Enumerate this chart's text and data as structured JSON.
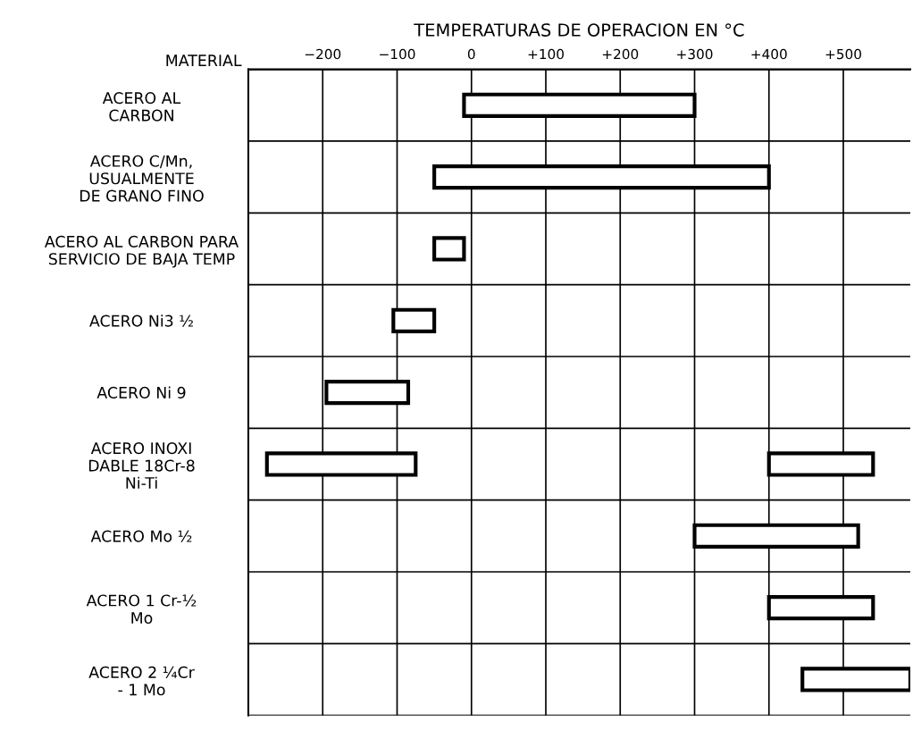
{
  "chart_data": {
    "type": "bar",
    "orientation": "horizontal",
    "xlabel": "TEMPERATURAS DE OPERACION EN °C",
    "ylabel": "MATERIAL",
    "categories": [
      "ACERO AL\nCARBON",
      "ACERO C/Mn,\nUSUALMENTE\nDE GRANO FINO",
      "ACERO AL CARBON PARA\nSERVICIO DE BAJA TEMP",
      "ACERO Ni3 ½",
      "ACERO Ni 9",
      "ACERO INOXI\nDABLE 18Cr-8\nNi-Ti",
      "ACERO Mo ½",
      "ACERO 1 Cr-½\nMo",
      "ACERO 2 ¼Cr\n- 1 Mo"
    ],
    "series": [
      {
        "color": "#ffffff",
        "base": [
          -10,
          -50,
          -50,
          -105,
          -195,
          -275,
          300,
          400,
          445
        ],
        "values": [
          310,
          450,
          40,
          55,
          110,
          200,
          220,
          140,
          145
        ]
      },
      {
        "color": "#ffffff",
        "base": [
          null,
          null,
          null,
          null,
          null,
          400,
          null,
          null,
          null
        ],
        "values": [
          null,
          null,
          null,
          null,
          null,
          140,
          null,
          null,
          null
        ]
      }
    ],
    "xlim": [
      -300,
      590
    ],
    "xticks": [
      {
        "value": -300,
        "label": null
      },
      {
        "value": -200,
        "label": "−200"
      },
      {
        "value": -100,
        "label": "−100"
      },
      0,
      {
        "value": 100,
        "label": "+100"
      },
      {
        "value": 200,
        "label": "+200"
      },
      {
        "value": 300,
        "label": "+300"
      },
      {
        "value": 400,
        "label": "+400"
      },
      {
        "value": 500,
        "label": "+500"
      }
    ],
    "grid": true
  }
}
